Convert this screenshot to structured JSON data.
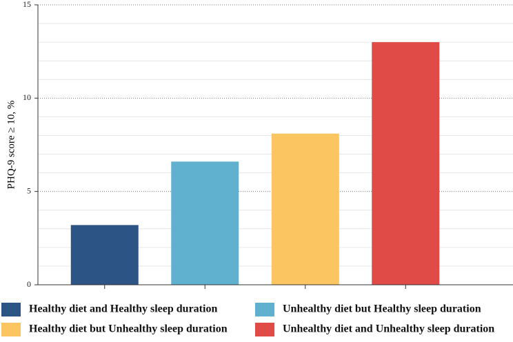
{
  "chart_data": {
    "type": "bar",
    "y_label": "PHQ-9 score ≥ 10, %",
    "categories": [
      "Healthy diet and Healthy sleep duration",
      "Unhealthy diet but Healthy sleep duration",
      "Healthy diet but Unhealthy sleep duration",
      "Unhealthy diet and Unhealthy sleep duration"
    ],
    "values": [
      3.2,
      6.6,
      8.1,
      13.0
    ],
    "colors": [
      "#2c5585",
      "#60b0d0",
      "#fbc661",
      "#e04b48"
    ],
    "ylim": [
      0,
      15
    ],
    "yticks": [
      0,
      5,
      10,
      15
    ],
    "y_minor_ticks": [
      1,
      2,
      3,
      4,
      6,
      7,
      8,
      9,
      11,
      12,
      13,
      14
    ],
    "grid": true
  }
}
